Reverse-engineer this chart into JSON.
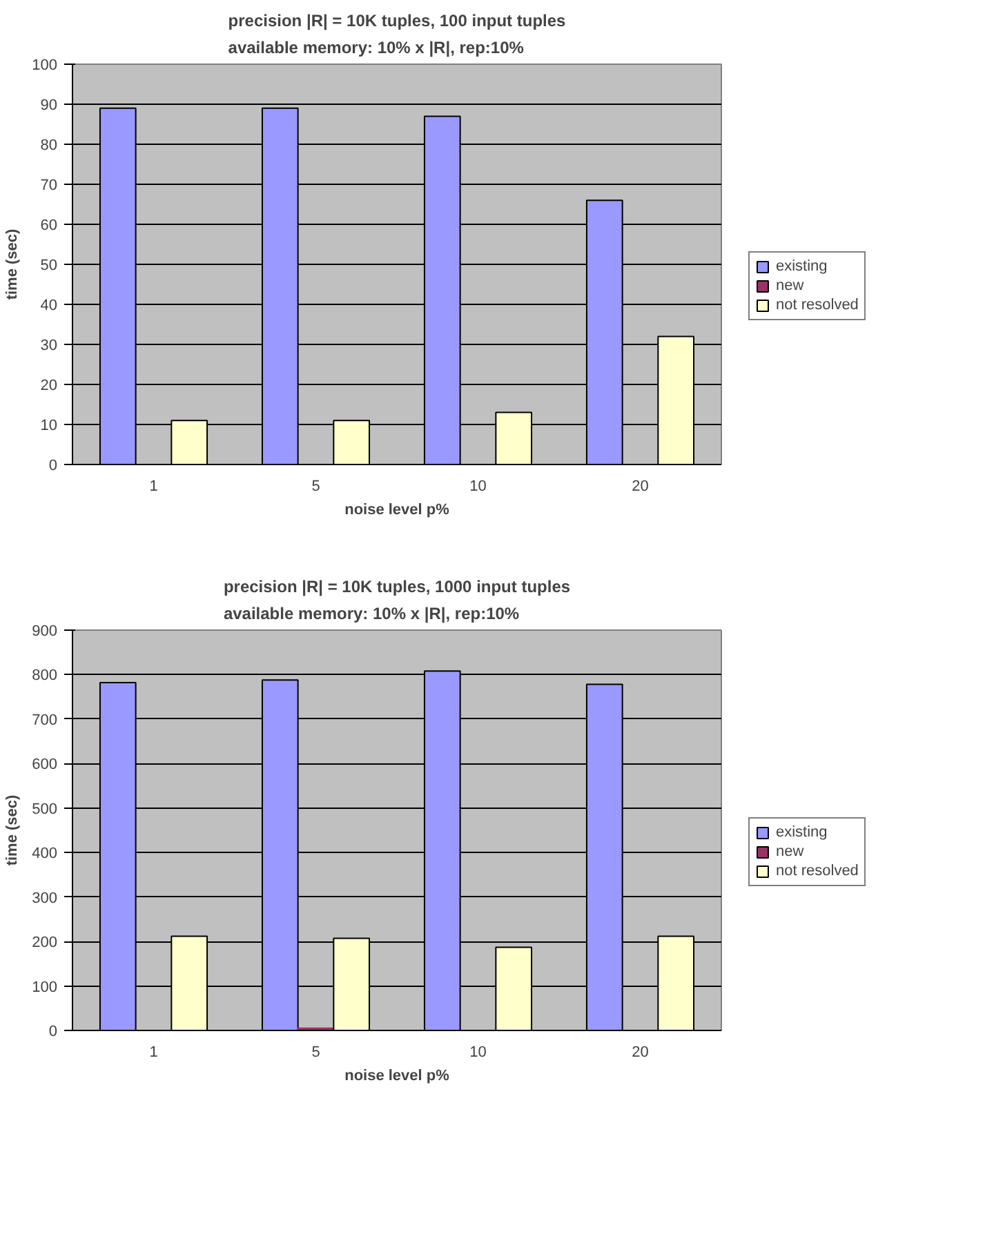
{
  "chart_data": [
    {
      "type": "bar",
      "title": "precision |R| = 10K tuples, 100 input tuples\navailable memory: 10% x |R|,  rep:10%",
      "xlabel": "noise level p%",
      "ylabel": "time (sec)",
      "categories": [
        "1",
        "5",
        "10",
        "20"
      ],
      "series": [
        {
          "name": "existing",
          "color": "#9999ff",
          "values": [
            89,
            89,
            87,
            66
          ]
        },
        {
          "name": "new",
          "color": "#993366",
          "values": [
            0,
            0,
            0,
            0
          ]
        },
        {
          "name": "not resolved",
          "color": "#ffffcc",
          "values": [
            11,
            11,
            13,
            32
          ]
        }
      ],
      "ylim": [
        0,
        100
      ],
      "yticks": [
        0,
        10,
        20,
        30,
        40,
        50,
        60,
        70,
        80,
        90,
        100
      ],
      "grid": "y",
      "legend": "right"
    },
    {
      "type": "bar",
      "title": "precision |R| = 10K tuples, 1000 input tuples\navailable memory: 10% x |R|,  rep:10%",
      "xlabel": "noise level p%",
      "ylabel": "time (sec)",
      "categories": [
        "1",
        "5",
        "10",
        "20"
      ],
      "series": [
        {
          "name": "existing",
          "color": "#9999ff",
          "values": [
            782,
            788,
            808,
            778
          ]
        },
        {
          "name": "new",
          "color": "#993366",
          "values": [
            0,
            5,
            0,
            0
          ]
        },
        {
          "name": "not resolved",
          "color": "#ffffcc",
          "values": [
            212,
            207,
            187,
            212
          ]
        }
      ],
      "ylim": [
        0,
        900
      ],
      "yticks": [
        0,
        100,
        200,
        300,
        400,
        500,
        600,
        700,
        800,
        900
      ],
      "grid": "y",
      "legend": "right"
    }
  ]
}
